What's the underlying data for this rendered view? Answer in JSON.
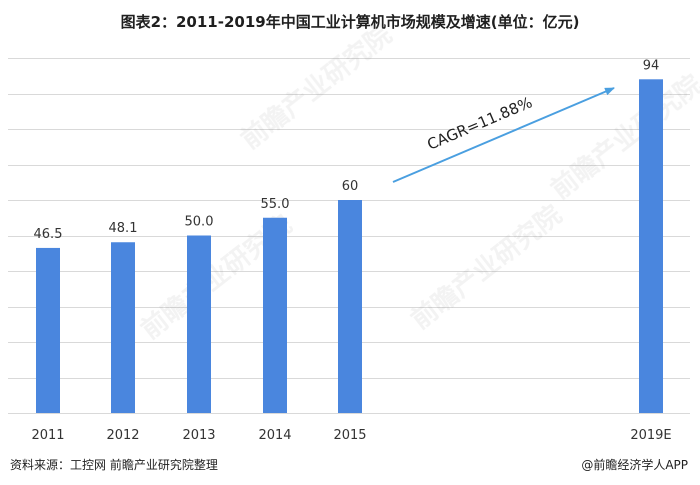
{
  "page_title": "图表2：2011-2019年中国工业计算机市场规模及增速(单位：亿元)",
  "source_text": "资料来源：工控网 前瞻产业研究院整理",
  "credit_text": "@前瞻经济学人APP",
  "watermark_text": "前瞻产业研究院",
  "bar_color": "#4A86DE",
  "arrow_color": "#4A9FE0",
  "grid_color": "#D9D9D9",
  "chart_data": {
    "type": "bar",
    "title": "图表2：2011-2019年中国工业计算机市场规模及增速(单位：亿元)",
    "categories": [
      "2011",
      "2012",
      "2013",
      "2014",
      "2015",
      "2019E"
    ],
    "values": [
      46.5,
      48.1,
      50.0,
      55.0,
      60,
      94
    ],
    "value_labels": [
      "46.5",
      "48.1",
      "50.0",
      "55.0",
      "60",
      "94"
    ],
    "ylim": [
      0,
      100
    ],
    "grid": true,
    "legend": "none",
    "annotation": "CAGR=11.88%"
  }
}
